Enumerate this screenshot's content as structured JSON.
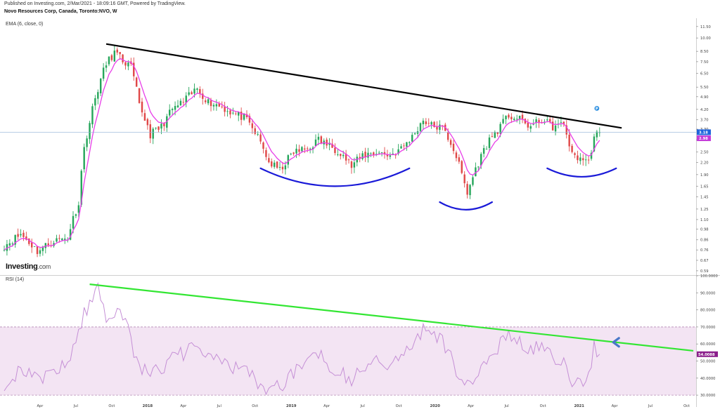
{
  "header": {
    "published": "Published on Investing.com, 2/Mar/2021 - 18:09:16 GMT, Powered by TradingView.",
    "symbol": "Novo Resources Corp, Canada, Toronto:NVO, W",
    "ema_label": "EMA (6, close, 0)",
    "rsi_label": "RSI (14)",
    "logo_main": "Investing",
    "logo_suffix": ".com"
  },
  "colors": {
    "up_candle": "#26a65b",
    "down_candle": "#e04848",
    "ema_line": "#e83ee8",
    "trendline_price": "#000000",
    "pattern_curves": "#1a1ad8",
    "trendline_rsi": "#33e633",
    "rsi_line": "#c58fd6",
    "rsi_band": "#f3e4f3",
    "last_price_badge": "#1e64dc",
    "ema_badge": "#c43ad8",
    "rsi_badge": "#8b1e8b",
    "arrow": "#4a78c8"
  },
  "chart_data": [
    {
      "type": "candlestick",
      "title": "Novo Resources Corp, Canada, Toronto:NVO, W",
      "indicator": "EMA (6, close, 0)",
      "y_scale": "log",
      "y_ticks": [
        "11.50",
        "10.00",
        "8.50",
        "7.50",
        "6.50",
        "5.50",
        "4.90",
        "4.20",
        "3.70",
        "3.30",
        "2.90",
        "2.50",
        "2.20",
        "1.90",
        "1.65",
        "1.45",
        "1.25",
        "1.10",
        "0.98",
        "0.86",
        "0.76",
        "0.67",
        "0.59"
      ],
      "y_range": [
        0.56,
        12.5
      ],
      "x_ticks": [
        "Apr",
        "Jul",
        "Oct",
        "2018",
        "Apr",
        "Jul",
        "Oct",
        "2019",
        "Apr",
        "Jul",
        "Oct",
        "2020",
        "Apr",
        "Jul",
        "Oct",
        "2021",
        "Apr",
        "Jul",
        "Oct"
      ],
      "last_price_label": "3.18",
      "ema_value_label": "2.98",
      "price_anchors": [
        [
          "2017-01-02",
          0.8
        ],
        [
          "2017-02-13",
          0.92
        ],
        [
          "2017-03-27",
          0.75
        ],
        [
          "2017-05-08",
          0.85
        ],
        [
          "2017-06-12",
          0.88
        ],
        [
          "2017-07-10",
          1.35
        ],
        [
          "2017-07-24",
          2.6
        ],
        [
          "2017-08-07",
          3.6
        ],
        [
          "2017-08-28",
          5.4
        ],
        [
          "2017-09-18",
          7.3
        ],
        [
          "2017-10-09",
          8.4
        ],
        [
          "2017-10-30",
          7.6
        ],
        [
          "2017-11-20",
          7.0
        ],
        [
          "2017-12-11",
          4.4
        ],
        [
          "2018-01-08",
          3.1
        ],
        [
          "2018-02-05",
          3.4
        ],
        [
          "2018-03-05",
          4.2
        ],
        [
          "2018-04-02",
          4.6
        ],
        [
          "2018-05-07",
          5.4
        ],
        [
          "2018-06-04",
          4.6
        ],
        [
          "2018-07-02",
          4.4
        ],
        [
          "2018-08-06",
          4.0
        ],
        [
          "2018-09-03",
          3.8
        ],
        [
          "2018-10-08",
          3.0
        ],
        [
          "2018-11-05",
          2.2
        ],
        [
          "2018-12-03",
          2.0
        ],
        [
          "2019-01-07",
          2.5
        ],
        [
          "2019-02-11",
          2.6
        ],
        [
          "2019-03-11",
          2.9
        ],
        [
          "2019-04-08",
          2.7
        ],
        [
          "2019-05-06",
          2.5
        ],
        [
          "2019-06-03",
          2.1
        ],
        [
          "2019-07-01",
          2.4
        ],
        [
          "2019-08-05",
          2.5
        ],
        [
          "2019-09-09",
          2.4
        ],
        [
          "2019-10-07",
          2.6
        ],
        [
          "2019-11-04",
          3.0
        ],
        [
          "2019-12-02",
          3.7
        ],
        [
          "2019-12-23",
          3.45
        ],
        [
          "2020-01-20",
          3.35
        ],
        [
          "2020-02-17",
          2.6
        ],
        [
          "2020-03-09",
          1.9
        ],
        [
          "2020-03-23",
          1.5
        ],
        [
          "2020-04-20",
          2.2
        ],
        [
          "2020-05-18",
          2.9
        ],
        [
          "2020-06-15",
          3.4
        ],
        [
          "2020-07-06",
          3.9
        ],
        [
          "2020-08-03",
          3.7
        ],
        [
          "2020-08-31",
          3.4
        ],
        [
          "2020-09-28",
          3.7
        ],
        [
          "2020-10-26",
          3.4
        ],
        [
          "2020-11-23",
          3.5
        ],
        [
          "2020-12-14",
          2.4
        ],
        [
          "2021-01-11",
          2.3
        ],
        [
          "2021-01-25",
          2.2
        ],
        [
          "2021-02-08",
          3.0
        ],
        [
          "2021-02-22",
          3.18
        ]
      ],
      "annotations": {
        "descending_trendline": [
          [
            "2017-09-18",
            9.3
          ],
          [
            "2021-04-19",
            3.35
          ]
        ],
        "cup_pattern": {
          "from": "2018-10-15",
          "to": "2019-10-28",
          "low": 1.65,
          "edge": 2.05
        },
        "head_pattern": {
          "from": "2020-01-13",
          "to": "2020-05-25",
          "low": 1.24,
          "edge": 1.36
        },
        "right_shoulder_pattern": {
          "from": "2020-10-12",
          "to": "2021-04-05",
          "low": 1.85,
          "edge": 2.05
        }
      }
    },
    {
      "type": "line",
      "indicator": "RSI (14)",
      "y_ticks": [
        "100.0000",
        "90.0000",
        "80.0000",
        "70.0000",
        "60.0000",
        "50.0000",
        "40.0000",
        "30.0000"
      ],
      "y_range": [
        28,
        100
      ],
      "overbought": 70,
      "oversold": 30,
      "last_value_label": "54.0088",
      "rsi_anchors": [
        [
          "2017-01-02",
          37
        ],
        [
          "2017-02-13",
          45
        ],
        [
          "2017-03-27",
          38
        ],
        [
          "2017-05-08",
          45
        ],
        [
          "2017-06-12",
          48
        ],
        [
          "2017-07-10",
          70
        ],
        [
          "2017-08-07",
          84
        ],
        [
          "2017-08-28",
          94
        ],
        [
          "2017-09-18",
          75
        ],
        [
          "2017-10-09",
          80
        ],
        [
          "2017-11-06",
          78
        ],
        [
          "2017-12-04",
          48
        ],
        [
          "2018-01-08",
          44
        ],
        [
          "2018-02-05",
          46
        ],
        [
          "2018-03-05",
          52
        ],
        [
          "2018-04-09",
          55
        ],
        [
          "2018-05-07",
          58
        ],
        [
          "2018-06-04",
          52
        ],
        [
          "2018-07-09",
          50
        ],
        [
          "2018-08-06",
          47
        ],
        [
          "2018-09-03",
          44
        ],
        [
          "2018-10-08",
          38
        ],
        [
          "2018-11-05",
          32
        ],
        [
          "2018-12-03",
          35
        ],
        [
          "2019-01-07",
          44
        ],
        [
          "2019-02-04",
          50
        ],
        [
          "2019-03-11",
          55
        ],
        [
          "2019-04-08",
          48
        ],
        [
          "2019-05-06",
          44
        ],
        [
          "2019-06-03",
          38
        ],
        [
          "2019-07-01",
          46
        ],
        [
          "2019-08-05",
          50
        ],
        [
          "2019-09-09",
          48
        ],
        [
          "2019-10-07",
          52
        ],
        [
          "2019-11-04",
          58
        ],
        [
          "2019-12-02",
          70
        ],
        [
          "2019-12-23",
          66
        ],
        [
          "2020-01-20",
          62
        ],
        [
          "2020-02-17",
          48
        ],
        [
          "2020-03-16",
          32
        ],
        [
          "2020-04-06",
          40
        ],
        [
          "2020-05-04",
          50
        ],
        [
          "2020-06-01",
          56
        ],
        [
          "2020-07-06",
          66
        ],
        [
          "2020-08-03",
          60
        ],
        [
          "2020-08-31",
          55
        ],
        [
          "2020-09-28",
          60
        ],
        [
          "2020-10-26",
          52
        ],
        [
          "2020-11-23",
          52
        ],
        [
          "2020-12-14",
          36
        ],
        [
          "2021-01-11",
          36
        ],
        [
          "2021-01-25",
          40
        ],
        [
          "2021-02-08",
          58
        ],
        [
          "2021-02-22",
          54
        ]
      ],
      "annotations": {
        "descending_trendline": [
          [
            "2017-08-07",
            95
          ],
          [
            "2021-10-18",
            56
          ]
        ],
        "arrow_at": [
          "2021-04-12",
          61
        ]
      }
    }
  ]
}
